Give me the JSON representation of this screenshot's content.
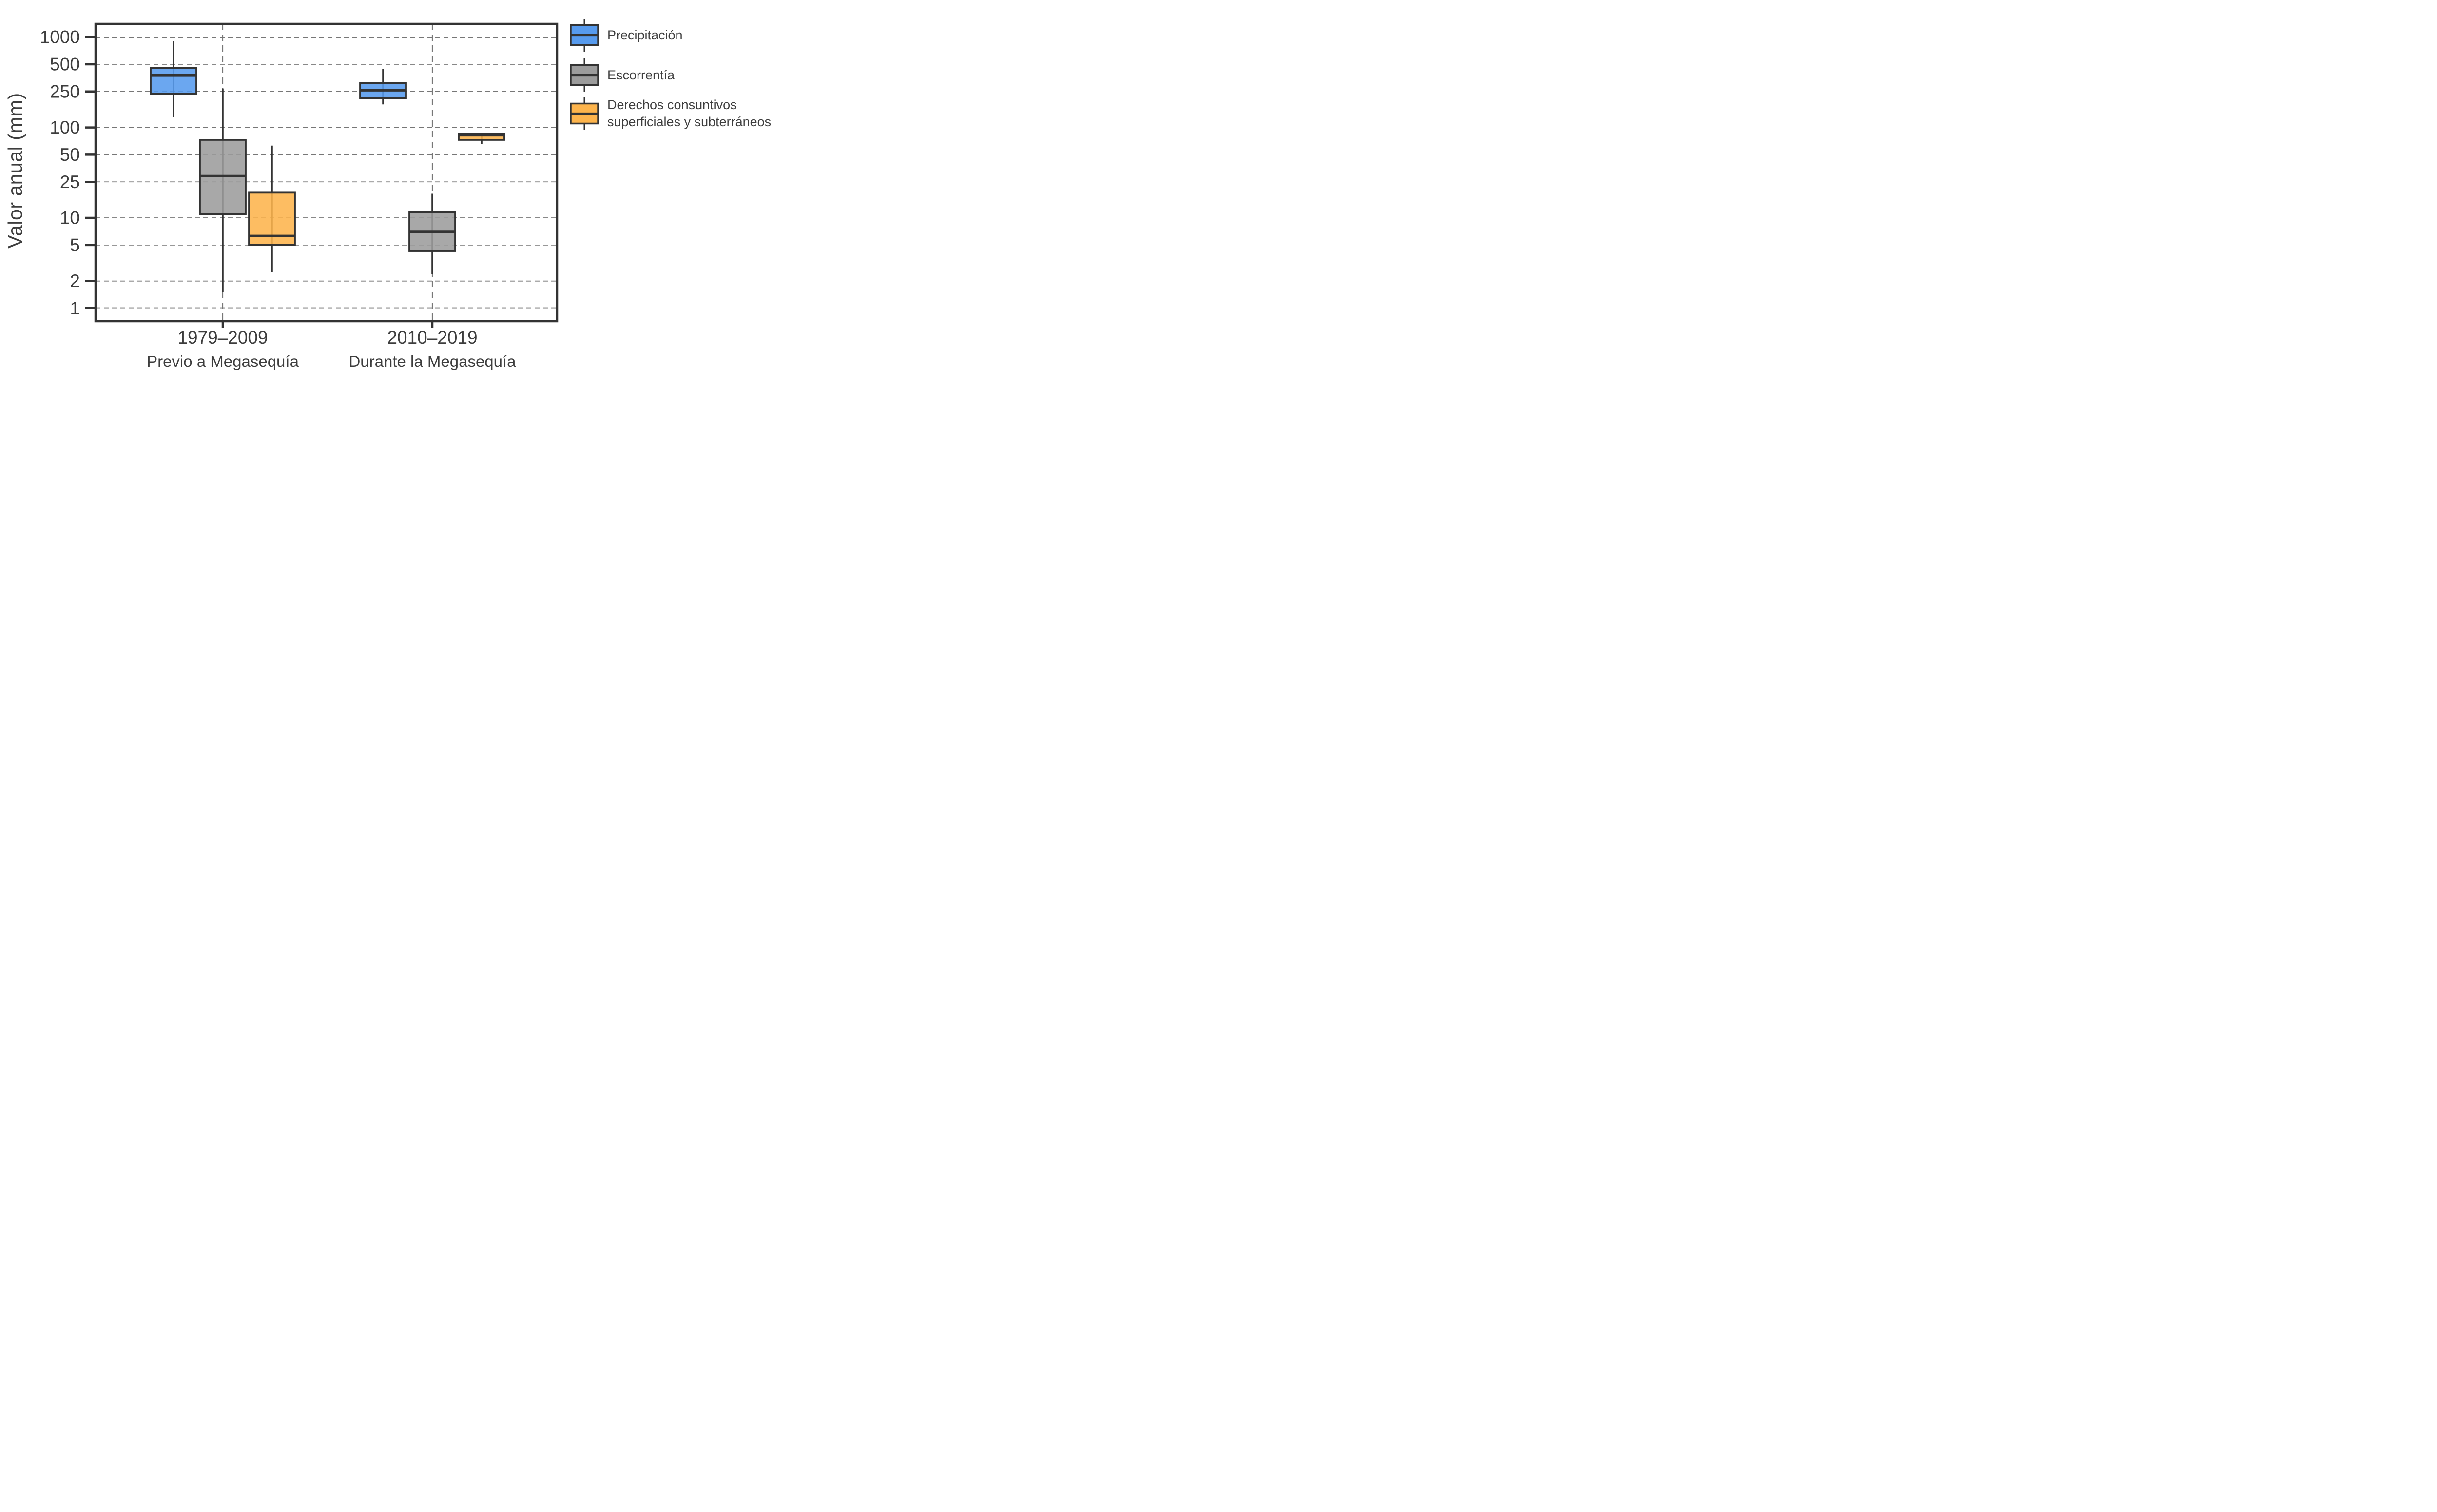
{
  "chart_data": {
    "type": "boxplot",
    "title": "",
    "ylabel": "Valor anual (mm)",
    "y_scale": "log",
    "ylim": [
      0.72,
      1400
    ],
    "yticks": [
      1,
      2,
      5,
      10,
      25,
      50,
      100,
      250,
      500,
      1000
    ],
    "grid": true,
    "legend_position": "right",
    "groups": [
      {
        "tick_label": "1979–2009",
        "sub_label": "Previo a Megasequía"
      },
      {
        "tick_label": "2010–2019",
        "sub_label": "Durante la Megasequía"
      }
    ],
    "series": [
      {
        "name": "Precipitación",
        "legend_label": "Precipitación",
        "color": "#579BEE",
        "boxes": [
          {
            "group": "1979–2009",
            "whisker_low": 130,
            "q1": 235,
            "median": 380,
            "q3": 455,
            "whisker_high": 900
          },
          {
            "group": "2010–2019",
            "whisker_low": 180,
            "q1": 210,
            "median": 258,
            "q3": 310,
            "whisker_high": 445
          }
        ]
      },
      {
        "name": "Escorrentía",
        "legend_label": "Escorrentía",
        "color": "#9C9C9C",
        "boxes": [
          {
            "group": "1979–2009",
            "whisker_low": 1.5,
            "q1": 11,
            "median": 29,
            "q3": 73,
            "whisker_high": 270
          },
          {
            "group": "2010–2019",
            "whisker_low": 2.4,
            "q1": 4.3,
            "median": 7,
            "q3": 11.5,
            "whisker_high": 18.5
          }
        ]
      },
      {
        "name": "Derechos consuntivos superficiales y subterráneos",
        "legend_label": "Derechos consuntivos\nsuperficiales y subterráneos",
        "color": "#FDB44C",
        "boxes": [
          {
            "group": "1979–2009",
            "whisker_low": 2.5,
            "q1": 5,
            "median": 6.3,
            "q3": 19,
            "whisker_high": 63
          },
          {
            "group": "2010–2019",
            "whisker_low": 66,
            "q1": 73,
            "median": 82,
            "q3": 85,
            "whisker_high": 87
          }
        ]
      }
    ],
    "colors": {
      "box_edge": "#333333",
      "grid": "#777777",
      "axis": "#333333",
      "text": "#3d3d3d"
    }
  }
}
